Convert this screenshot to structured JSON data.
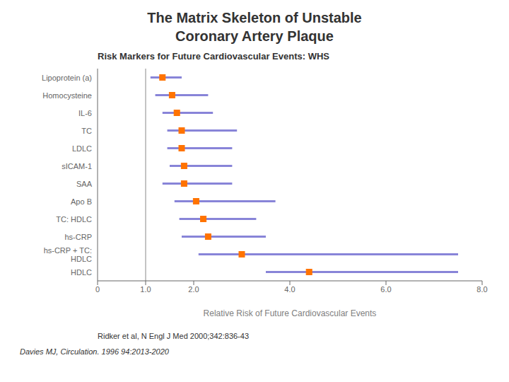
{
  "chart_data": {
    "type": "forest",
    "title": "The Matrix Skeleton of Unstable\nCoronary Artery Plaque",
    "subtitle": "Risk Markers for Future Cardiovascular Events: WHS",
    "x_label": "Relative Risk of Future Cardiovascular Events",
    "annotations": [
      "Ridker et al, N Engl J Med 2000;342:836-43",
      "Davies MJ, Circulation. 1996 94:2013-2020"
    ],
    "categories": [
      "Lipoprotein (a)",
      "Homocysteine",
      "IL-6",
      "TC",
      "LDLC",
      "sICAM-1",
      "SAA",
      "Apo B",
      "TC: HDLC",
      "hs-CRP",
      "hs-CRP + TC:\nHDLC",
      "HDLC"
    ],
    "values": [
      1.35,
      1.55,
      1.65,
      1.75,
      1.75,
      1.8,
      1.8,
      2.05,
      2.2,
      2.3,
      3.0,
      4.4
    ],
    "ci_low": [
      1.1,
      1.2,
      1.35,
      1.45,
      1.45,
      1.5,
      1.35,
      1.6,
      1.7,
      1.75,
      2.1,
      3.5
    ],
    "ci_high": [
      1.75,
      2.3,
      2.4,
      2.9,
      2.8,
      2.8,
      2.8,
      3.7,
      3.3,
      3.5,
      7.5,
      7.5
    ],
    "reference_line": 1,
    "xlim": [
      0,
      8
    ],
    "xticks": [
      0,
      {
        "value": 1,
        "label": "1.0"
      },
      {
        "value": 2,
        "label": "2.0"
      },
      {
        "value": 4,
        "label": "4.0"
      },
      {
        "value": 6,
        "label": "6.0"
      },
      {
        "value": 8,
        "label": "8.0"
      }
    ],
    "grid": false
  }
}
